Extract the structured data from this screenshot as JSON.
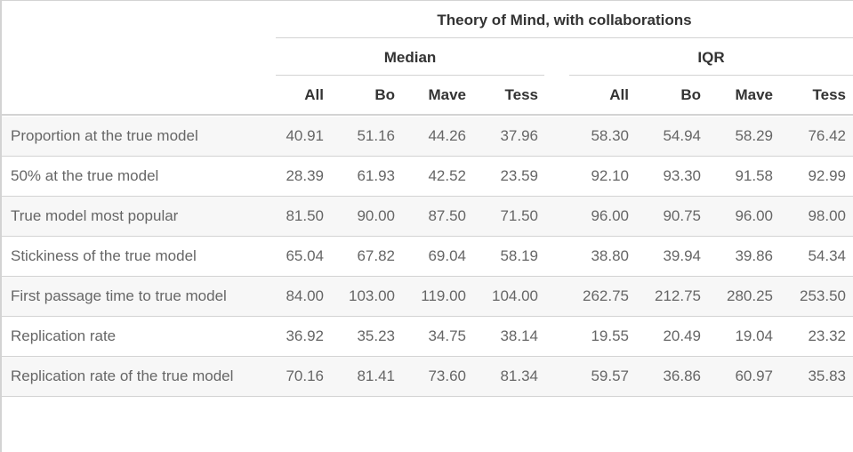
{
  "table": {
    "title": "Theory of Mind, with collaborations",
    "spanners": [
      "Median",
      "IQR"
    ],
    "columns": [
      "All",
      "Bo",
      "Mave",
      "Tess",
      "All",
      "Bo",
      "Mave",
      "Tess"
    ],
    "rows": [
      {
        "label": "Proportion at the true model",
        "values": [
          "40.91",
          "51.16",
          "44.26",
          "37.96",
          "58.30",
          "54.94",
          "58.29",
          "76.42"
        ]
      },
      {
        "label": "50% at the true model",
        "values": [
          "28.39",
          "61.93",
          "42.52",
          "23.59",
          "92.10",
          "93.30",
          "91.58",
          "92.99"
        ]
      },
      {
        "label": "True model most popular",
        "values": [
          "81.50",
          "90.00",
          "87.50",
          "71.50",
          "96.00",
          "90.75",
          "96.00",
          "98.00"
        ]
      },
      {
        "label": "Stickiness of the true model",
        "values": [
          "65.04",
          "67.82",
          "69.04",
          "58.19",
          "38.80",
          "39.94",
          "39.86",
          "54.34"
        ]
      },
      {
        "label": "First passage time to true model",
        "values": [
          "84.00",
          "103.00",
          "119.00",
          "104.00",
          "262.75",
          "212.75",
          "280.25",
          "253.50"
        ]
      },
      {
        "label": "Replication rate",
        "values": [
          "36.92",
          "35.23",
          "34.75",
          "38.14",
          "19.55",
          "20.49",
          "19.04",
          "23.32"
        ]
      },
      {
        "label": "Replication rate of the true model",
        "values": [
          "70.16",
          "81.41",
          "73.60",
          "81.34",
          "59.57",
          "36.86",
          "60.97",
          "35.83"
        ]
      }
    ]
  }
}
